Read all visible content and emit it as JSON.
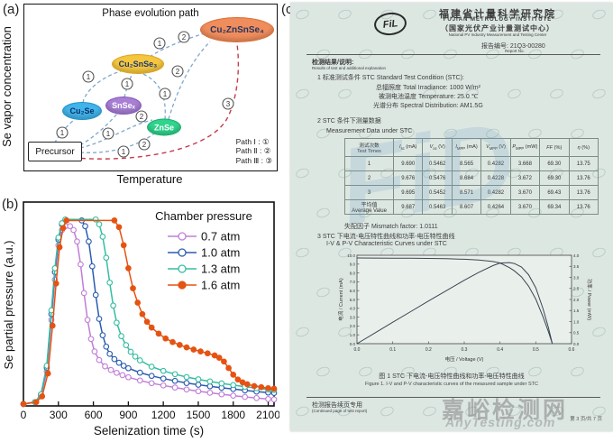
{
  "panel_a": {
    "label": "(a)",
    "title": "Phase evolution path",
    "y_axis": "Se vapor concentration",
    "x_axis": "Temperature",
    "nodes": [
      {
        "label": "Precursor",
        "fill": "#ffffff",
        "border": "#222222",
        "text": "#111111"
      },
      {
        "label": "Cu₂Se",
        "fill": "#41b4e9",
        "border": "#2090c8",
        "text": "#0d2d6b"
      },
      {
        "label": "SnSeₓ",
        "fill": "#a77fd4",
        "border": "#8458b8",
        "text": "#ffffff"
      },
      {
        "label": "ZnSe",
        "fill": "#2fd48d",
        "border": "#1cab6e",
        "text": "#ffffff"
      },
      {
        "label": "Cu₂SnSe₃",
        "fill": "#f5c63e",
        "border": "#d8a41f",
        "text": "#173a7a"
      },
      {
        "label": "Cu₂ZnSnSe₄",
        "fill": "#f08d5c",
        "border": "#d96c35",
        "text": "#26355f"
      }
    ],
    "path_colors": {
      "blue": "#7fa8cf",
      "red": "#c43b4c"
    },
    "path_markers": [
      {
        "x": 42,
        "y": 142,
        "label": "1"
      },
      {
        "x": 71,
        "y": 80,
        "label": "1"
      },
      {
        "x": 93,
        "y": 143,
        "label": "1"
      },
      {
        "x": 114,
        "y": 88,
        "label": "1"
      },
      {
        "x": 110,
        "y": 163,
        "label": "1"
      },
      {
        "x": 150,
        "y": 43,
        "label": "1"
      },
      {
        "x": 156,
        "y": 99,
        "label": "1"
      },
      {
        "x": 177,
        "y": 36,
        "label": "2"
      },
      {
        "x": 170,
        "y": 74,
        "label": "2"
      },
      {
        "x": 130,
        "y": 124,
        "label": "2"
      },
      {
        "x": 133,
        "y": 155,
        "label": "2"
      },
      {
        "x": 226,
        "y": 110,
        "label": "3"
      }
    ],
    "legend": [
      "Path Ⅰ : ①",
      "Path Ⅱ : ②",
      "Path Ⅲ : ③"
    ]
  },
  "panel_b": {
    "label": "(b)",
    "y_axis": "Se partial pressure (a.u.)",
    "x_axis": "Selenization time (s)"
  },
  "certificate": {
    "label": "(c)",
    "logo": "FiL",
    "org_cn": "福建省计量科学研究院",
    "org_en": "FUJIAN METROLOGY INSTITUTE",
    "center_cn": "（国家光伏产业计量测试中心）",
    "center_en": "National PV Industry Measurement and Testing Center",
    "report_no": "报告编号: 21Q3-00280",
    "report_no_sub": "Report No.",
    "results_heading": "检测结果/说明:",
    "results_heading_sub": "Results of test and additional explanation",
    "item1": "1   标准测试条件 STC Standard Test Condition (STC):",
    "irradiance": "总辐照度 Total Irradiance:  1000 W/m²",
    "temperature": "被测电池温度 Temperature:  25.0 ℃",
    "spectral": "光谱分布 Spectral Distribution:  AM1.5G",
    "item2_cn": "2   STC 条件下测量数据",
    "item2_en": "Measurement Data under STC",
    "table": {
      "headers": [
        {
          "text": "测试次数\nTest Times"
        },
        {
          "sym": "I",
          "sub": "sc",
          "unit": "(mA)"
        },
        {
          "sym": "V",
          "sub": "oc",
          "unit": "(V)"
        },
        {
          "sym": "I",
          "sub": "MPP",
          "unit": "(mA)"
        },
        {
          "sym": "V",
          "sub": "MPP",
          "unit": "(V)"
        },
        {
          "sym": "P",
          "sub": "MPP",
          "unit": "(mW)"
        },
        {
          "sym": "FF",
          "sub": "",
          "unit": "(%)"
        },
        {
          "sym": "η",
          "sub": "",
          "unit": "(%)"
        }
      ],
      "rows": [
        [
          "1",
          "9.690",
          "0.5462",
          "8.565",
          "0.4282",
          "3.668",
          "69.30",
          "13.75"
        ],
        [
          "2",
          "9.676",
          "0.5476",
          "8.684",
          "0.4228",
          "3.672",
          "69.30",
          "13.76"
        ],
        [
          "3",
          "9.695",
          "0.5452",
          "8.571",
          "0.4282",
          "3.670",
          "69.43",
          "13.76"
        ],
        [
          "平均值\nAverage Value",
          "9.687",
          "0.5463",
          "8.607",
          "0.4264",
          "3.670",
          "69.34",
          "13.76"
        ]
      ]
    },
    "mismatch": "失配因子 Mismatch factor: 1.0111",
    "item3_cn": "3   STC 下电流-电压特性曲线和功率-电压特性曲线",
    "item3_en": "I-V & P-V Characteristic Curves under STC",
    "caption_cn": "图 1 STC 下电流-电压特性曲线和功率-电压特性曲线",
    "caption_en": "Figure 1. I-V and P-V characteristic curves of the measured sample under STC",
    "footer_left": "检测报告续页专用",
    "footer_left_sub": "(Continued page of test report)",
    "watermark_main": "嘉峪检测网",
    "watermark_sub": "AnyTesting.com",
    "watermark_logo": "FiD",
    "page_info": "第 3 页/共 7 页"
  },
  "chart_data": [
    {
      "id": "se_partial_pressure",
      "type": "line",
      "legend_title": "Chamber pressure",
      "xlabel": "Selenization time (s)",
      "ylabel": "Se partial pressure (a.u.)",
      "xlim": [
        0,
        2150
      ],
      "xticks": [
        0,
        300,
        600,
        900,
        1200,
        1500,
        1800,
        2100
      ],
      "ylim": [
        0,
        1
      ],
      "series": [
        {
          "name": "0.7 atm",
          "color": "#c07ed8",
          "marker": "open",
          "points": [
            [
              0,
              0.01
            ],
            [
              100,
              0.02
            ],
            [
              150,
              0.05
            ],
            [
              200,
              0.18
            ],
            [
              240,
              0.45
            ],
            [
              270,
              0.66
            ],
            [
              300,
              0.84
            ],
            [
              330,
              0.92
            ],
            [
              360,
              0.94
            ],
            [
              400,
              0.94
            ],
            [
              430,
              0.92
            ],
            [
              460,
              0.86
            ],
            [
              490,
              0.74
            ],
            [
              520,
              0.59
            ],
            [
              550,
              0.45
            ],
            [
              580,
              0.35
            ],
            [
              610,
              0.285
            ],
            [
              650,
              0.24
            ],
            [
              700,
              0.207
            ],
            [
              750,
              0.188
            ],
            [
              800,
              0.173
            ],
            [
              850,
              0.161
            ],
            [
              900,
              0.15
            ],
            [
              1000,
              0.133
            ],
            [
              1100,
              0.119
            ],
            [
              1200,
              0.107
            ],
            [
              1300,
              0.096
            ],
            [
              1400,
              0.086
            ],
            [
              1500,
              0.077
            ],
            [
              1600,
              0.069
            ],
            [
              1700,
              0.061
            ],
            [
              1800,
              0.054
            ],
            [
              1900,
              0.047
            ],
            [
              2000,
              0.041
            ],
            [
              2100,
              0.036
            ],
            [
              2150,
              0.034
            ]
          ]
        },
        {
          "name": "1.0 atm",
          "color": "#2a5cb0",
          "marker": "open",
          "points": [
            [
              0,
              0.01
            ],
            [
              100,
              0.02
            ],
            [
              150,
              0.06
            ],
            [
              200,
              0.2
            ],
            [
              240,
              0.48
            ],
            [
              270,
              0.7
            ],
            [
              300,
              0.87
            ],
            [
              330,
              0.95
            ],
            [
              360,
              0.97
            ],
            [
              500,
              0.97
            ],
            [
              530,
              0.94
            ],
            [
              560,
              0.86
            ],
            [
              590,
              0.73
            ],
            [
              620,
              0.58
            ],
            [
              650,
              0.455
            ],
            [
              680,
              0.37
            ],
            [
              710,
              0.31
            ],
            [
              740,
              0.272
            ],
            [
              780,
              0.245
            ],
            [
              820,
              0.226
            ],
            [
              860,
              0.21
            ],
            [
              900,
              0.197
            ],
            [
              1000,
              0.174
            ],
            [
              1100,
              0.157
            ],
            [
              1200,
              0.143
            ],
            [
              1300,
              0.131
            ],
            [
              1400,
              0.12
            ],
            [
              1500,
              0.111
            ],
            [
              1600,
              0.103
            ],
            [
              1700,
              0.095
            ],
            [
              1800,
              0.088
            ],
            [
              1900,
              0.081
            ],
            [
              2000,
              0.075
            ],
            [
              2100,
              0.07
            ],
            [
              2150,
              0.068
            ]
          ]
        },
        {
          "name": "1.3 atm",
          "color": "#35bda0",
          "marker": "open",
          "points": [
            [
              0,
              0.01
            ],
            [
              100,
              0.02
            ],
            [
              150,
              0.06
            ],
            [
              200,
              0.21
            ],
            [
              240,
              0.5
            ],
            [
              270,
              0.72
            ],
            [
              300,
              0.88
            ],
            [
              330,
              0.955
            ],
            [
              360,
              0.975
            ],
            [
              620,
              0.975
            ],
            [
              650,
              0.95
            ],
            [
              680,
              0.885
            ],
            [
              710,
              0.775
            ],
            [
              740,
              0.645
            ],
            [
              770,
              0.525
            ],
            [
              800,
              0.435
            ],
            [
              840,
              0.365
            ],
            [
              880,
              0.318
            ],
            [
              920,
              0.283
            ],
            [
              960,
              0.258
            ],
            [
              1000,
              0.238
            ],
            [
              1100,
              0.205
            ],
            [
              1200,
              0.183
            ],
            [
              1300,
              0.166
            ],
            [
              1400,
              0.151
            ],
            [
              1500,
              0.139
            ],
            [
              1600,
              0.128
            ],
            [
              1700,
              0.118
            ],
            [
              1800,
              0.109
            ],
            [
              1900,
              0.1
            ],
            [
              2000,
              0.093
            ],
            [
              2100,
              0.086
            ],
            [
              2150,
              0.083
            ]
          ]
        },
        {
          "name": "1.6 atm",
          "color": "#e55312",
          "marker": "filled",
          "points": [
            [
              0,
              0.01
            ],
            [
              110,
              0.02
            ],
            [
              160,
              0.05
            ],
            [
              210,
              0.17
            ],
            [
              250,
              0.42
            ],
            [
              280,
              0.64
            ],
            [
              310,
              0.83
            ],
            [
              340,
              0.93
            ],
            [
              370,
              0.97
            ],
            [
              780,
              0.97
            ],
            [
              820,
              0.935
            ],
            [
              860,
              0.84
            ],
            [
              900,
              0.72
            ],
            [
              940,
              0.615
            ],
            [
              980,
              0.54
            ],
            [
              1020,
              0.48
            ],
            [
              1060,
              0.44
            ],
            [
              1100,
              0.41
            ],
            [
              1160,
              0.378
            ],
            [
              1220,
              0.353
            ],
            [
              1280,
              0.334
            ],
            [
              1340,
              0.319
            ],
            [
              1400,
              0.306
            ],
            [
              1460,
              0.295
            ],
            [
              1520,
              0.285
            ],
            [
              1580,
              0.275
            ],
            [
              1640,
              0.264
            ],
            [
              1680,
              0.252
            ],
            [
              1720,
              0.232
            ],
            [
              1760,
              0.198
            ],
            [
              1800,
              0.163
            ],
            [
              1840,
              0.138
            ],
            [
              1880,
              0.123
            ],
            [
              1920,
              0.113
            ],
            [
              1980,
              0.104
            ],
            [
              2040,
              0.098
            ],
            [
              2100,
              0.093
            ],
            [
              2150,
              0.09
            ]
          ]
        }
      ]
    },
    {
      "id": "iv_pv_curves",
      "type": "line",
      "xlabel": "电压 / Voltage (V)",
      "ylabel_left": "电流 / Current (mA)",
      "ylabel_right": "功率 / Power (mW)",
      "xlim": [
        0,
        0.6
      ],
      "ylim_left": [
        0,
        10
      ],
      "ylim_right": [
        0,
        4
      ],
      "xticks": [
        "0.0",
        "0.1",
        "0.2",
        "0.3",
        "0.4",
        "0.5",
        "0.6"
      ],
      "yticks_left": [
        "0.0",
        "1.0",
        "2.0",
        "3.0",
        "4.0",
        "5.0",
        "6.0",
        "7.0",
        "8.0",
        "9.0",
        "10.0"
      ],
      "yticks_right": [
        "0.0",
        "0.5",
        "1.0",
        "1.5",
        "2.0",
        "2.5",
        "3.0",
        "3.5",
        "4.0"
      ],
      "color": "#3b4450",
      "series": [
        {
          "name": "I-V",
          "axis": "left",
          "x": [
            0,
            0.05,
            0.1,
            0.15,
            0.2,
            0.25,
            0.3,
            0.34,
            0.38,
            0.4,
            0.4264,
            0.44,
            0.46,
            0.48,
            0.5,
            0.52,
            0.535,
            0.5463
          ],
          "y": [
            9.69,
            9.68,
            9.67,
            9.66,
            9.64,
            9.61,
            9.55,
            9.47,
            9.3,
            9.13,
            8.607,
            8.25,
            7.55,
            6.5,
            5.05,
            3.05,
            1.4,
            0
          ]
        },
        {
          "name": "P-V",
          "axis": "right",
          "x": [
            0,
            0.05,
            0.1,
            0.15,
            0.2,
            0.25,
            0.3,
            0.34,
            0.38,
            0.4,
            0.4264,
            0.44,
            0.46,
            0.48,
            0.5,
            0.52,
            0.535,
            0.5463
          ],
          "y": [
            0,
            0.48,
            0.97,
            1.45,
            1.93,
            2.4,
            2.87,
            3.22,
            3.53,
            3.65,
            3.67,
            3.63,
            3.47,
            3.12,
            2.53,
            1.59,
            0.75,
            0
          ]
        }
      ]
    }
  ]
}
